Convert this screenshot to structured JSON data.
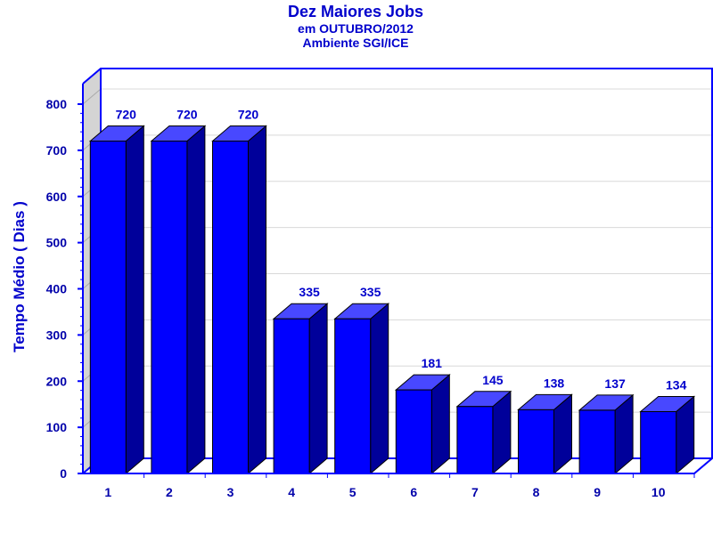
{
  "chart_data": {
    "type": "bar",
    "title": "Dez Maiores Jobs",
    "subtitle_lines": [
      "em OUTUBRO/2012",
      "Ambiente SGI/ICE"
    ],
    "xlabel": "",
    "ylabel": "Tempo Médio ( Dias )",
    "categories": [
      "1",
      "2",
      "3",
      "4",
      "5",
      "6",
      "7",
      "8",
      "9",
      "10"
    ],
    "values": [
      720,
      720,
      720,
      335,
      335,
      181,
      145,
      138,
      137,
      134
    ],
    "ylim": [
      0,
      800
    ],
    "yticks": [
      0,
      100,
      200,
      300,
      400,
      500,
      600,
      700,
      800
    ],
    "grid": true,
    "legend": "none",
    "style": "3d",
    "colors": {
      "bar_front": "#0000ff",
      "bar_side": "#00009a",
      "bar_top": "#4848ff",
      "text": "#0000cc",
      "frame": "#0000ff",
      "back_wall": "#d4d4d4",
      "grid": "#d8d8d8"
    }
  }
}
